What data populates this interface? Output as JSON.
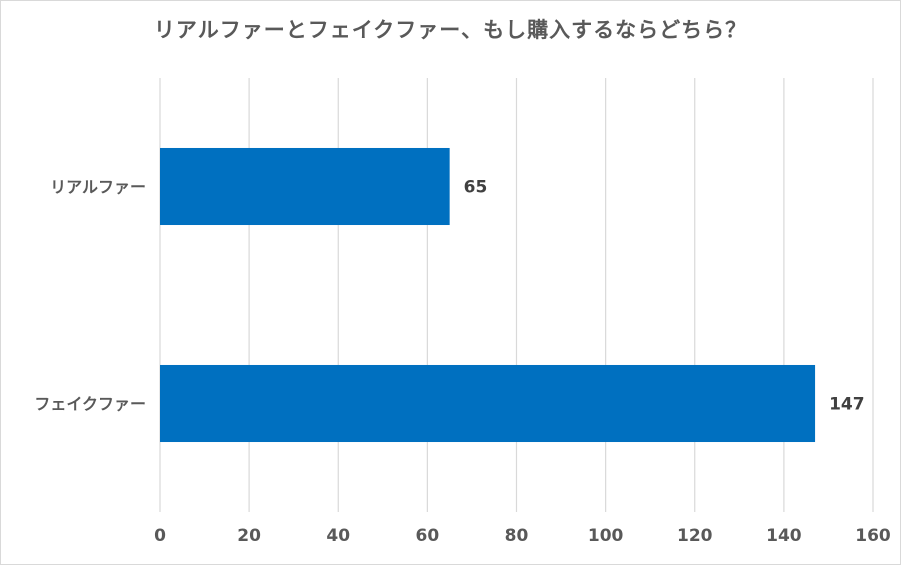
{
  "chart_data": {
    "type": "bar",
    "orientation": "horizontal",
    "title": "リアルファーとフェイクファー、もし購入するならどちら？",
    "categories": [
      "リアルファー",
      "フェイクファー"
    ],
    "values": [
      65,
      147
    ],
    "data_labels": [
      "65",
      "147"
    ],
    "xlim": [
      0,
      160
    ],
    "xticks": [
      0,
      20,
      40,
      60,
      80,
      100,
      120,
      140,
      160
    ],
    "xtick_labels": [
      "0",
      "20",
      "40",
      "60",
      "80",
      "100",
      "120",
      "140",
      "160"
    ],
    "xlabel": "",
    "ylabel": "",
    "grid": "vertical",
    "legend": "none",
    "bar_color": "#0070C0",
    "grid_color": "#d9d9d9"
  }
}
